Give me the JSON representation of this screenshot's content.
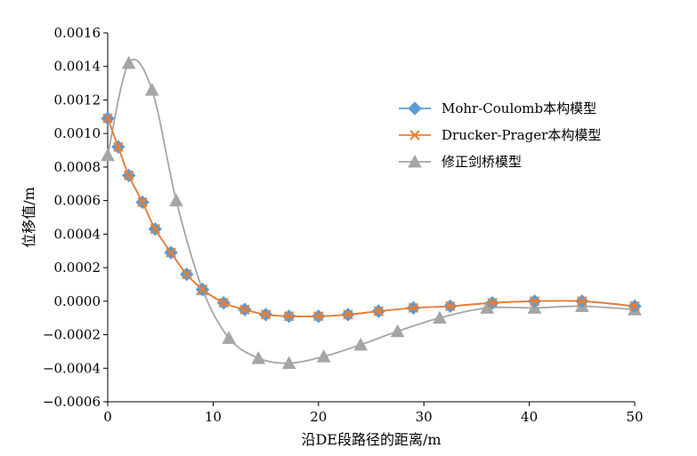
{
  "chart_data": {
    "type": "line",
    "xlabel": "沿DE段路径的距离/m",
    "ylabel": "位移值/m",
    "xlim": [
      0,
      50
    ],
    "ylim": [
      -0.0006,
      0.0016
    ],
    "x_ticks": [
      "0",
      "10",
      "20",
      "30",
      "40",
      "50"
    ],
    "y_ticks": [
      "−0.0006",
      "−0.0004",
      "−0.0002",
      "0.0000",
      "0.0002",
      "0.0004",
      "0.0006",
      "0.0008",
      "0.0010",
      "0.0012",
      "0.0014",
      "0.0016"
    ],
    "grid": false,
    "legend_position": "right",
    "series": [
      {
        "name": "Mohr-Coulomb本构模型",
        "color": "#5B9BD5",
        "marker": "diamond",
        "x": [
          0,
          1,
          2,
          3.3,
          4.5,
          6,
          7.5,
          9,
          11,
          13,
          15,
          17.2,
          20,
          22.8,
          25.7,
          29,
          32.5,
          36.5,
          40.5,
          45,
          50
        ],
        "y": [
          0.00109,
          0.00092,
          0.00075,
          0.00059,
          0.00043,
          0.00029,
          0.00016,
          7e-05,
          -1e-05,
          -5e-05,
          -8e-05,
          -9e-05,
          -9e-05,
          -8e-05,
          -6e-05,
          -4e-05,
          -3e-05,
          -1e-05,
          0.0,
          0.0,
          -3e-05
        ]
      },
      {
        "name": "Drucker-Prager本构模型",
        "color": "#ED7D31",
        "marker": "x",
        "x": [
          0,
          1,
          2,
          3.3,
          4.5,
          6,
          7.5,
          9,
          11,
          13,
          15,
          17.2,
          20,
          22.8,
          25.7,
          29,
          32.5,
          36.5,
          40.5,
          45,
          50
        ],
        "y": [
          0.00109,
          0.00092,
          0.00075,
          0.00059,
          0.00043,
          0.00029,
          0.00016,
          7e-05,
          -1e-05,
          -5e-05,
          -8e-05,
          -9e-05,
          -9e-05,
          -8e-05,
          -6e-05,
          -4e-05,
          -3e-05,
          -1e-05,
          0.0,
          0.0,
          -3e-05
        ]
      },
      {
        "name": "修正剑桥模型",
        "color": "#A5A5A5",
        "marker": "triangle",
        "x": [
          0,
          2,
          4.2,
          6.5,
          9,
          11.5,
          14.3,
          17.2,
          20.5,
          24,
          27.5,
          31.5,
          36,
          40.5,
          45,
          50
        ],
        "y": [
          0.00087,
          0.00142,
          0.00126,
          0.0006,
          7e-05,
          -0.00022,
          -0.00034,
          -0.00037,
          -0.00033,
          -0.00026,
          -0.00018,
          -0.0001,
          -4e-05,
          -4e-05,
          -3e-05,
          -5e-05
        ]
      }
    ]
  }
}
